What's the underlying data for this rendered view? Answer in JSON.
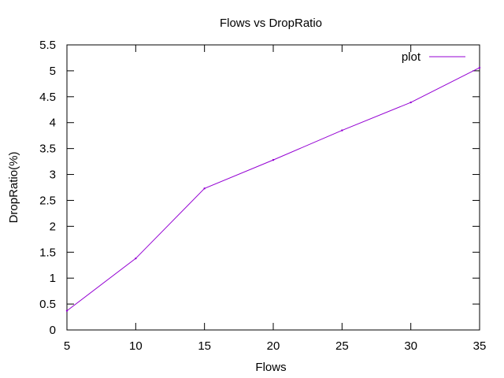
{
  "chart_data": {
    "type": "line",
    "title": "Flows vs DropRatio",
    "xlabel": "Flows",
    "ylabel": "DropRatio(%)",
    "xlim": [
      5,
      35
    ],
    "ylim": [
      0,
      5.5
    ],
    "xticks": [
      5,
      10,
      15,
      20,
      25,
      30,
      35
    ],
    "yticks": [
      0,
      0.5,
      1,
      1.5,
      2,
      2.5,
      3,
      3.5,
      4,
      4.5,
      5,
      5.5
    ],
    "grid": false,
    "legend_position": "top-right",
    "series": [
      {
        "name": "plot",
        "color": "#9400d3",
        "x": [
          5,
          10,
          15,
          20,
          25,
          30,
          35
        ],
        "y": [
          0.37,
          1.38,
          2.73,
          3.28,
          3.85,
          4.39,
          5.06
        ]
      }
    ]
  }
}
